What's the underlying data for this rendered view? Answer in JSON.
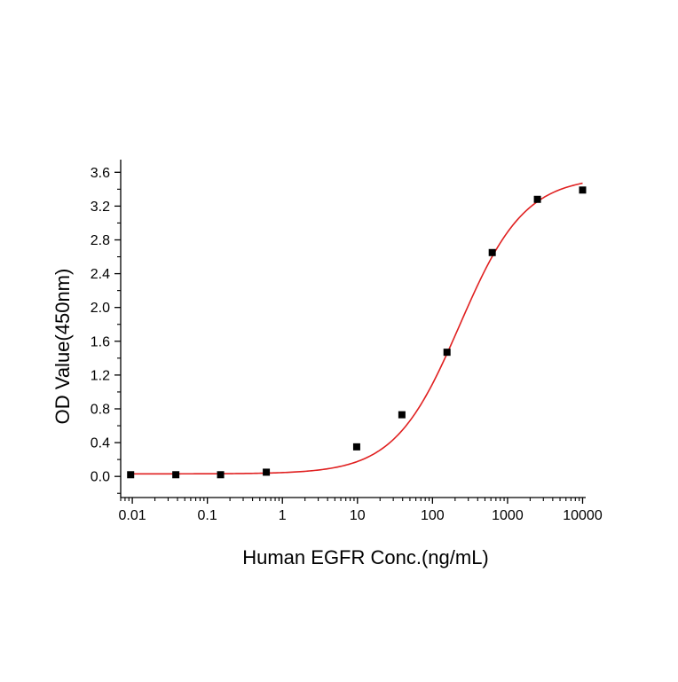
{
  "colors": {
    "background": "#ffffff",
    "axis": "#000000",
    "points": "#000000",
    "fit_curve": "#e02020"
  },
  "chart_data": {
    "type": "scatter",
    "title": "",
    "xlabel": "Human EGFR  Conc.(ng/mL)",
    "ylabel": "OD Value(450nm)",
    "x_scale": "log",
    "xlim": [
      0.007,
      11000
    ],
    "ylim": [
      -0.25,
      3.75
    ],
    "x_ticks": [
      0.01,
      0.1,
      1,
      10,
      100,
      1000,
      10000
    ],
    "x_tick_labels": [
      "0.01",
      "0.1",
      "1",
      "10",
      "100",
      "1000",
      "10000"
    ],
    "y_ticks": [
      0.0,
      0.4,
      0.8,
      1.2,
      1.6,
      2.0,
      2.4,
      2.8,
      3.2,
      3.6
    ],
    "y_tick_labels": [
      "0.0",
      "0.4",
      "0.8",
      "1.2",
      "1.6",
      "2.0",
      "2.4",
      "2.8",
      "3.2",
      "3.6"
    ],
    "grid": false,
    "legend": "none",
    "series": [
      {
        "marker": "square",
        "x": [
          0.0095,
          0.038,
          0.15,
          0.61,
          9.77,
          39.1,
          156,
          625,
          2500,
          10000
        ],
        "y": [
          0.02,
          0.02,
          0.02,
          0.05,
          0.35,
          0.73,
          1.47,
          2.65,
          3.28,
          3.39
        ]
      }
    ],
    "fit": {
      "model": "4PL",
      "bottom": 0.03,
      "top": 3.55,
      "ec50": 230,
      "hill": 1.0
    }
  }
}
